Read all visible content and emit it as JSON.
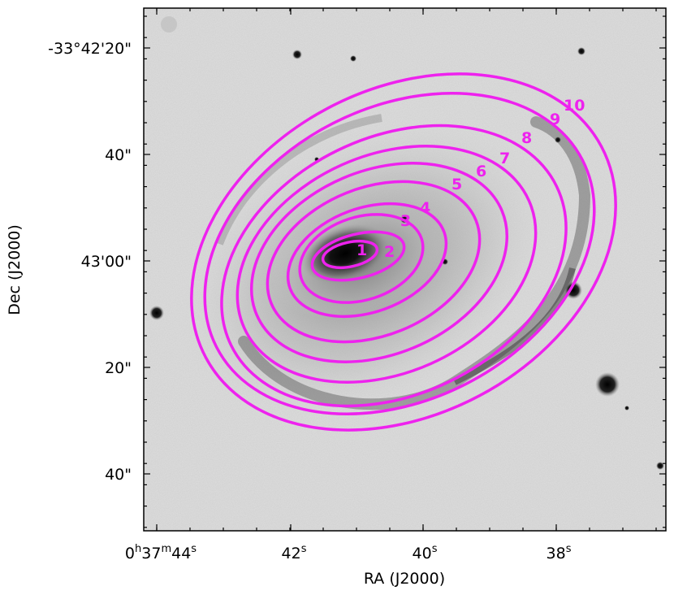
{
  "axes": {
    "x_title": "RA (J2000)",
    "y_title": "Dec (J2000)",
    "x_ticks": [
      {
        "main": "0",
        "sup1": "h",
        "mid": "37",
        "sup2": "m",
        "sec": "44",
        "sup3": "s"
      },
      {
        "sec": "42",
        "sup3": "s"
      },
      {
        "sec": "40",
        "sup3": "s"
      },
      {
        "sec": "38",
        "sup3": "s"
      }
    ],
    "y_ticks": [
      "-33°42'20\"",
      "40\"",
      "43'00\"",
      "20\"",
      "40\""
    ]
  },
  "colors": {
    "contour": "#ee22ee",
    "background_sky": "#d9d9d9",
    "axes": "#000000"
  },
  "rings": {
    "labels": [
      "1",
      "2",
      "3",
      "4",
      "5",
      "6",
      "7",
      "8",
      "9",
      "10"
    ]
  }
}
